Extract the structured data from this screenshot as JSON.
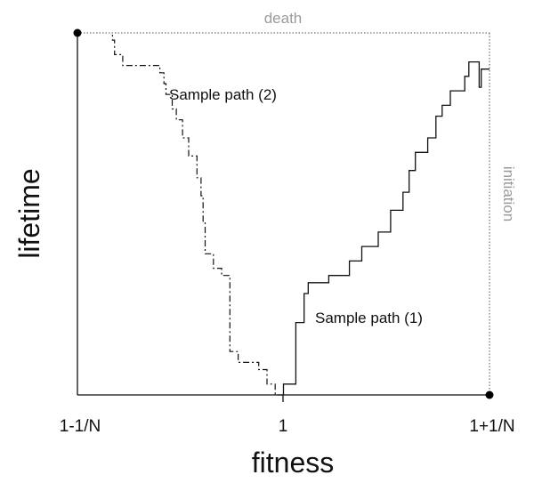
{
  "chart_data": {
    "type": "line",
    "title": "",
    "xlabel": "fitness",
    "ylabel": "lifetime",
    "x_ticks": [
      "1-1/N",
      "1",
      "1+1/N"
    ],
    "xlim": [
      -1,
      1
    ],
    "ylim": [
      0,
      1
    ],
    "grid": false,
    "legend": "none",
    "annotations": {
      "top_boundary": "death",
      "right_boundary": "initiation"
    },
    "series": [
      {
        "name": "Sample path (1)",
        "style": "solid",
        "points": [
          [
            0,
            0
          ],
          [
            0,
            0.03
          ],
          [
            0.06,
            0.03
          ],
          [
            0.06,
            0.2
          ],
          [
            0.1,
            0.2
          ],
          [
            0.1,
            0.28
          ],
          [
            0.12,
            0.28
          ],
          [
            0.12,
            0.31
          ],
          [
            0.22,
            0.31
          ],
          [
            0.22,
            0.33
          ],
          [
            0.32,
            0.33
          ],
          [
            0.32,
            0.37
          ],
          [
            0.38,
            0.37
          ],
          [
            0.38,
            0.41
          ],
          [
            0.46,
            0.41
          ],
          [
            0.46,
            0.45
          ],
          [
            0.52,
            0.45
          ],
          [
            0.52,
            0.51
          ],
          [
            0.58,
            0.51
          ],
          [
            0.58,
            0.56
          ],
          [
            0.61,
            0.56
          ],
          [
            0.61,
            0.62
          ],
          [
            0.64,
            0.62
          ],
          [
            0.64,
            0.67
          ],
          [
            0.7,
            0.67
          ],
          [
            0.7,
            0.71
          ],
          [
            0.74,
            0.71
          ],
          [
            0.74,
            0.77
          ],
          [
            0.77,
            0.77
          ],
          [
            0.77,
            0.8
          ],
          [
            0.81,
            0.8
          ],
          [
            0.81,
            0.84
          ],
          [
            0.88,
            0.84
          ],
          [
            0.88,
            0.88
          ],
          [
            0.9,
            0.88
          ],
          [
            0.9,
            0.92
          ],
          [
            0.95,
            0.92
          ],
          [
            0.95,
            0.85
          ],
          [
            0.96,
            0.85
          ],
          [
            0.96,
            0.9
          ],
          [
            1,
            0.9
          ]
        ]
      },
      {
        "name": "Sample path (2)",
        "style": "dashed",
        "points": [
          [
            0,
            0
          ],
          [
            -0.04,
            0
          ],
          [
            -0.04,
            0.03
          ],
          [
            -0.08,
            0.03
          ],
          [
            -0.08,
            0.07
          ],
          [
            -0.12,
            0.07
          ],
          [
            -0.12,
            0.09
          ],
          [
            -0.22,
            0.09
          ],
          [
            -0.22,
            0.12
          ],
          [
            -0.26,
            0.12
          ],
          [
            -0.26,
            0.33
          ],
          [
            -0.3,
            0.33
          ],
          [
            -0.3,
            0.35
          ],
          [
            -0.34,
            0.35
          ],
          [
            -0.34,
            0.39
          ],
          [
            -0.38,
            0.39
          ],
          [
            -0.38,
            0.48
          ],
          [
            -0.39,
            0.48
          ],
          [
            -0.39,
            0.55
          ],
          [
            -0.4,
            0.55
          ],
          [
            -0.4,
            0.6
          ],
          [
            -0.42,
            0.6
          ],
          [
            -0.42,
            0.66
          ],
          [
            -0.46,
            0.66
          ],
          [
            -0.46,
            0.71
          ],
          [
            -0.49,
            0.71
          ],
          [
            -0.49,
            0.76
          ],
          [
            -0.52,
            0.76
          ],
          [
            -0.52,
            0.79
          ],
          [
            -0.54,
            0.79
          ],
          [
            -0.54,
            0.83
          ],
          [
            -0.57,
            0.83
          ],
          [
            -0.57,
            0.86
          ],
          [
            -0.58,
            0.86
          ],
          [
            -0.58,
            0.89
          ],
          [
            -0.6,
            0.89
          ],
          [
            -0.6,
            0.91
          ],
          [
            -0.78,
            0.91
          ],
          [
            -0.78,
            0.94
          ],
          [
            -0.82,
            0.94
          ],
          [
            -0.82,
            0.98
          ],
          [
            -0.83,
            0.98
          ],
          [
            -0.83,
            1
          ]
        ]
      }
    ]
  },
  "labels": {
    "path1": "Sample path (1)",
    "path2": "Sample path (2)",
    "death": "death",
    "initiation": "initiation",
    "xlabel": "fitness",
    "ylabel": "lifetime",
    "tick_left": "1-1/N",
    "tick_center": "1",
    "tick_right": "1+1/N"
  },
  "colors": {
    "axis": "#111111",
    "path": "#111111",
    "boundary": "#555555",
    "annotation": "#9a9a9a"
  }
}
